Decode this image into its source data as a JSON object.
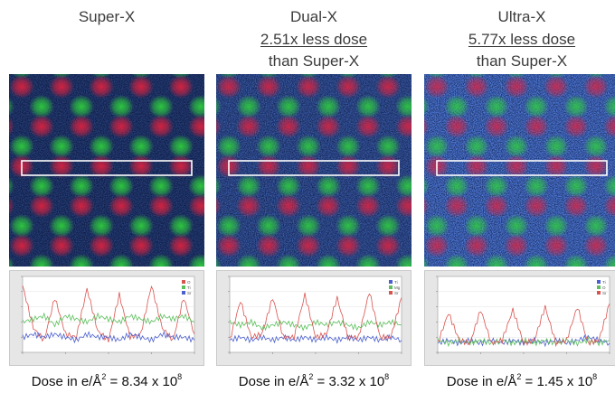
{
  "panels": [
    {
      "title": "Super-X",
      "subtitle_line1": "",
      "subtitle_line2": "",
      "dose_prefix": "Dose in e/Å",
      "dose_exp_unit": "2",
      "dose_mid": " = 8.34 x 10",
      "dose_exp": "8",
      "legend": [
        "O",
        "Ti",
        "Sr"
      ],
      "noise": 0.25
    },
    {
      "title": "Dual-X",
      "subtitle_line1": "2.51x less dose",
      "subtitle_line2": "than Super-X",
      "dose_prefix": "Dose in e/Å",
      "dose_exp_unit": "2",
      "dose_mid": " = 3.32 x 10",
      "dose_exp": "8",
      "legend": [
        "Ti",
        "Mg",
        "Sr"
      ],
      "noise": 0.5
    },
    {
      "title": "Ultra-X",
      "subtitle_line1": "5.77x less dose",
      "subtitle_line2": "than Super-X",
      "dose_prefix": "Dose in e/Å",
      "dose_exp_unit": "2",
      "dose_mid": " = 1.45 x 10",
      "dose_exp": "8",
      "legend": [
        "Ti",
        "O",
        "Sr"
      ],
      "noise": 0.8
    }
  ],
  "chart_data": [
    {
      "type": "line",
      "x": [
        0,
        0.1,
        0.2,
        0.3,
        0.4,
        0.5,
        0.6,
        0.7,
        0.8,
        0.9,
        1.0,
        1.1,
        1.2,
        1.3,
        1.4,
        1.5,
        1.6
      ],
      "xlim": [
        0,
        1.6
      ],
      "ylim": [
        0,
        25
      ],
      "series": [
        {
          "name": "O",
          "color": "#d9534f",
          "values": [
            22,
            8,
            4,
            18,
            6,
            5,
            21,
            7,
            4,
            19,
            5,
            6,
            22,
            8,
            4,
            18,
            6
          ]
        },
        {
          "name": "Ti",
          "color": "#5bbf5b",
          "values": [
            10,
            11,
            12,
            9,
            12,
            11,
            10,
            12,
            11,
            10,
            12,
            11,
            10,
            12,
            11,
            12,
            10
          ]
        },
        {
          "name": "Sr",
          "color": "#4a5fd0",
          "values": [
            5,
            6,
            5,
            6,
            5,
            4,
            6,
            5,
            5,
            4,
            6,
            5,
            4,
            6,
            5,
            5,
            4
          ]
        }
      ]
    },
    {
      "type": "line",
      "x": [
        0,
        0.1,
        0.2,
        0.3,
        0.4,
        0.5,
        0.6,
        0.7,
        0.8,
        0.9,
        1.0,
        1.1,
        1.2,
        1.3,
        1.4,
        1.5,
        1.6
      ],
      "xlim": [
        0,
        1.6
      ],
      "ylim": [
        0,
        25
      ],
      "series": [
        {
          "name": "Ti",
          "color": "#4a5fd0",
          "values": [
            4,
            5,
            4,
            5,
            4,
            5,
            4,
            5,
            4,
            5,
            4,
            5,
            4,
            5,
            4,
            5,
            4
          ]
        },
        {
          "name": "Mg",
          "color": "#5bbf5b",
          "values": [
            10,
            9,
            10,
            8,
            9,
            10,
            9,
            8,
            10,
            9,
            10,
            9,
            8,
            10,
            9,
            10,
            9
          ]
        },
        {
          "name": "Sr",
          "color": "#d9534f",
          "values": [
            4,
            17,
            5,
            6,
            18,
            5,
            5,
            19,
            5,
            6,
            18,
            5,
            5,
            20,
            5,
            5,
            18
          ]
        }
      ]
    },
    {
      "type": "line",
      "x": [
        0,
        0.1,
        0.2,
        0.3,
        0.4,
        0.5,
        0.6,
        0.7,
        0.8,
        0.9,
        1.0,
        1.1,
        1.2,
        1.3,
        1.4,
        1.5,
        1.6
      ],
      "xlim": [
        0,
        1.6
      ],
      "ylim": [
        0,
        25
      ],
      "series": [
        {
          "name": "Ti",
          "color": "#4a5fd0",
          "values": [
            3,
            4,
            3,
            4,
            3,
            4,
            3,
            4,
            3,
            4,
            3,
            4,
            3,
            4,
            5,
            4,
            3
          ]
        },
        {
          "name": "O",
          "color": "#5bbf5b",
          "values": [
            4,
            3,
            4,
            3,
            4,
            3,
            4,
            3,
            4,
            3,
            4,
            3,
            4,
            3,
            4,
            3,
            4
          ]
        },
        {
          "name": "Sr",
          "color": "#d9534f",
          "values": [
            3,
            13,
            4,
            3,
            14,
            3,
            4,
            14,
            3,
            4,
            15,
            3,
            4,
            15,
            3,
            4,
            16
          ]
        }
      ]
    }
  ]
}
